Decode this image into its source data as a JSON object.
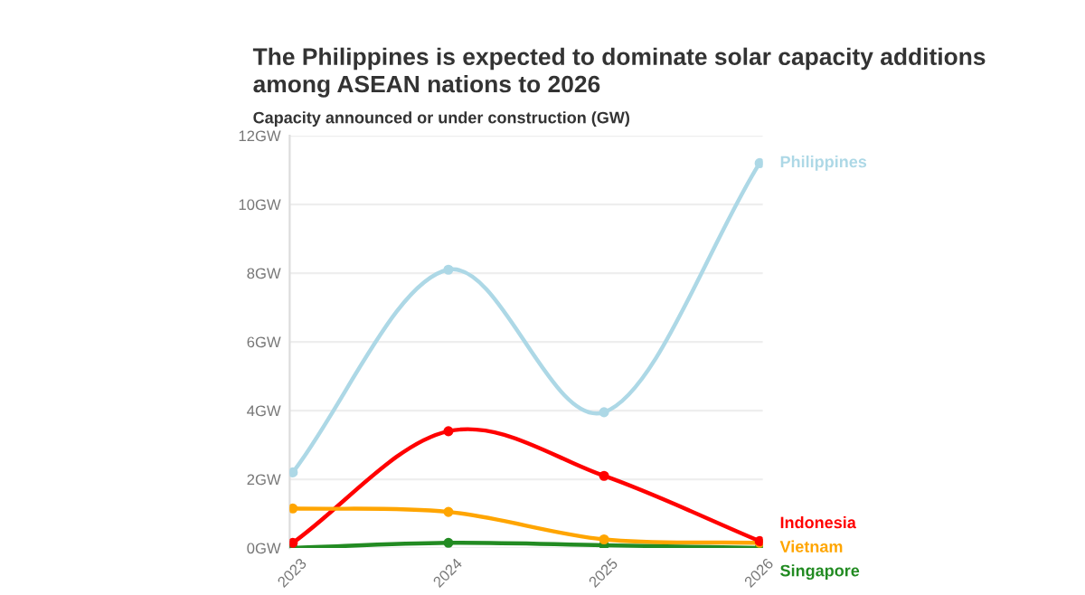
{
  "chart_data": {
    "type": "line",
    "title": "The Philippines is expected to dominate solar capacity additions\namong ASEAN nations to 2026",
    "subtitle": "Capacity announced or under construction (GW)",
    "categories": [
      "2023",
      "2024",
      "2025",
      "2026"
    ],
    "series": [
      {
        "name": "Philippines",
        "color": "#add8e6",
        "values": [
          2.2,
          8.1,
          3.95,
          11.2
        ]
      },
      {
        "name": "Indonesia",
        "color": "#ff0000",
        "values": [
          0.15,
          3.4,
          2.1,
          0.2
        ]
      },
      {
        "name": "Vietnam",
        "color": "#ffa500",
        "values": [
          1.15,
          1.05,
          0.25,
          0.15
        ]
      },
      {
        "name": "Singapore",
        "color": "#228b22",
        "values": [
          0.0,
          0.15,
          0.08,
          0.0
        ]
      }
    ],
    "ylim": [
      0,
      12
    ],
    "yticks": [
      {
        "value": 0,
        "label": "0GW"
      },
      {
        "value": 2,
        "label": "2GW"
      },
      {
        "value": 4,
        "label": "4GW"
      },
      {
        "value": 6,
        "label": "6GW"
      },
      {
        "value": 8,
        "label": "8GW"
      },
      {
        "value": 10,
        "label": "10GW"
      },
      {
        "value": 12,
        "label": "12GW"
      }
    ],
    "grid": "y",
    "marker": "circle",
    "line_style": "solid"
  }
}
